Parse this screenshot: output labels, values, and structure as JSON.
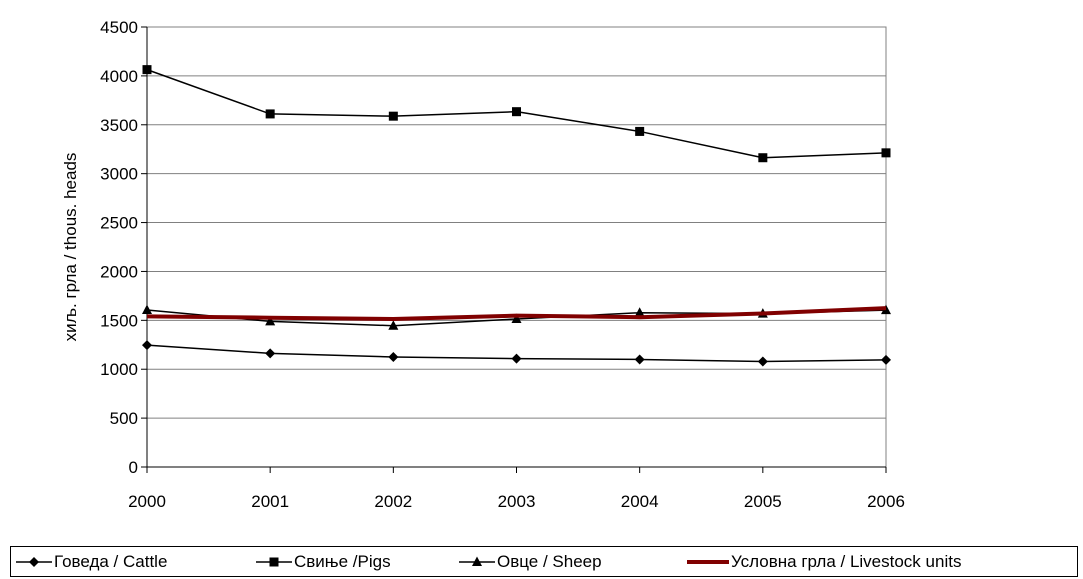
{
  "chart_data": {
    "type": "line",
    "title": "",
    "xlabel": "",
    "ylabel": "хиљ. грла / thous. heads",
    "x": [
      "2000",
      "2001",
      "2002",
      "2003",
      "2004",
      "2005",
      "2006"
    ],
    "ylim": [
      0,
      4500
    ],
    "yticks": [
      "0",
      "500",
      "1000",
      "1500",
      "2000",
      "2500",
      "3000",
      "3500",
      "4000",
      "4500"
    ],
    "grid": true,
    "legend_position": "bottom",
    "series": [
      {
        "name": "Говеда / Cattle",
        "marker": "diamond",
        "color": "#000000",
        "values": [
          1246,
          1162,
          1125,
          1109,
          1100,
          1079,
          1096
        ]
      },
      {
        "name": "Свиње /Pigs",
        "marker": "square",
        "color": "#000000",
        "values": [
          4064,
          3611,
          3588,
          3634,
          3432,
          3163,
          3213
        ]
      },
      {
        "name": "Овце / Sheep",
        "marker": "triangle",
        "color": "#000000",
        "values": [
          1606,
          1489,
          1445,
          1514,
          1578,
          1568,
          1604
        ]
      },
      {
        "name": "Условна грла / Livestock units",
        "marker": "none",
        "color": "#800000",
        "values": [
          1540,
          1527,
          1514,
          1548,
          1532,
          1570,
          1625
        ]
      }
    ]
  }
}
